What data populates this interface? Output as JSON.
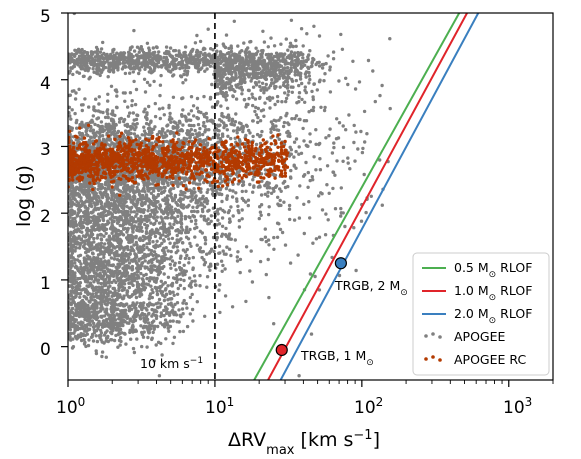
{
  "chart_data": {
    "type": "scatter",
    "title": "",
    "xlabel": "ΔRV",
    "xlabel_sub": "max",
    "xlabel_units": " [km s",
    "xlabel_exp": "−1",
    "xlabel_close": "]",
    "ylabel": "log (g)",
    "xscale": "log",
    "xlim": [
      1,
      2000
    ],
    "ylim": [
      -0.5,
      5
    ],
    "x_ticks": [
      {
        "value": 1,
        "base": "10",
        "exp": "0"
      },
      {
        "value": 10,
        "base": "10",
        "exp": "1"
      },
      {
        "value": 100,
        "base": "10",
        "exp": "2"
      },
      {
        "value": 1000,
        "base": "10",
        "exp": "3"
      }
    ],
    "y_ticks": [
      "0",
      "1",
      "2",
      "3",
      "4",
      "5"
    ],
    "grid": false,
    "legend_position": "lower-right",
    "series": [
      {
        "name": "0.5 M",
        "name_sub": "⊙",
        "name_rest": " RLOF",
        "kind": "line",
        "color": "#4caf50",
        "x": [
          18.5,
          460
        ],
        "y": [
          -0.5,
          5
        ]
      },
      {
        "name": "1.0 M",
        "name_sub": "⊙",
        "name_rest": " RLOF",
        "kind": "line",
        "color": "#e0242a",
        "x": [
          23,
          520
        ],
        "y": [
          -0.5,
          5
        ]
      },
      {
        "name": "2.0 M",
        "name_sub": "⊙",
        "name_rest": " RLOF",
        "kind": "line",
        "color": "#3a7fbf",
        "x": [
          28,
          620
        ],
        "y": [
          -0.5,
          5
        ]
      },
      {
        "name": "APOGEE",
        "kind": "scatter",
        "color": "#808080"
      },
      {
        "name": "APOGEE RC",
        "kind": "scatter",
        "color": "#b33a00"
      }
    ],
    "reference_line": {
      "x": 10,
      "label": "10 km s",
      "label_exp": "−1",
      "style": "dashed",
      "color": "#000000"
    },
    "markers": [
      {
        "label": "TRGB, 1 M",
        "label_sub": "⊙",
        "x": 28.5,
        "y": -0.05,
        "color": "#e0242a"
      },
      {
        "label": "TRGB, 2 M",
        "label_sub": "⊙",
        "x": 72,
        "y": 1.25,
        "color": "#3a7fbf"
      }
    ]
  }
}
